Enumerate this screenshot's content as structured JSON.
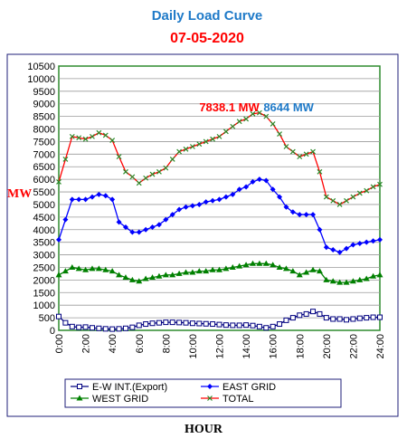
{
  "chart_data": {
    "type": "line",
    "title": "Daily Load Curve",
    "subtitle": "07-05-2020",
    "ylabel": "MW",
    "xlabel": "HOUR",
    "ylim": [
      0,
      10500
    ],
    "yticks": [
      0,
      500,
      1000,
      1500,
      2000,
      2500,
      3000,
      3500,
      4000,
      4500,
      5000,
      5500,
      6000,
      6500,
      7000,
      7500,
      8000,
      8500,
      9000,
      9500,
      10000,
      10500
    ],
    "xlim": [
      0,
      24
    ],
    "xticks": [
      "0:00",
      "2:00",
      "4:00",
      "6:00",
      "8:00",
      "10:00",
      "12:00",
      "14:00",
      "16:00",
      "18:00",
      "20:00",
      "22:00",
      "24:00"
    ],
    "grid": true,
    "legend_position": "bottom",
    "x": [
      0,
      0.5,
      1,
      1.5,
      2,
      2.5,
      3,
      3.5,
      4,
      4.5,
      5,
      5.5,
      6,
      6.5,
      7,
      7.5,
      8,
      8.5,
      9,
      9.5,
      10,
      10.5,
      11,
      11.5,
      12,
      12.5,
      13,
      13.5,
      14,
      14.5,
      15,
      15.5,
      16,
      16.5,
      17,
      17.5,
      18,
      18.5,
      19,
      19.5,
      20,
      20.5,
      21,
      21.5,
      22,
      22.5,
      23,
      23.5,
      24
    ],
    "series": [
      {
        "name": "E-W INT.(Export)",
        "color": "#000080",
        "marker": "square-open",
        "values": [
          550,
          300,
          150,
          120,
          130,
          100,
          80,
          60,
          50,
          60,
          80,
          120,
          200,
          250,
          280,
          300,
          320,
          320,
          310,
          300,
          280,
          270,
          260,
          250,
          230,
          210,
          200,
          200,
          210,
          190,
          150,
          100,
          150,
          250,
          400,
          500,
          600,
          650,
          750,
          650,
          500,
          450,
          450,
          420,
          450,
          480,
          500,
          520,
          520
        ]
      },
      {
        "name": "EAST GRID",
        "color": "#0000ff",
        "marker": "diamond",
        "values": [
          3600,
          4400,
          5200,
          5200,
          5200,
          5300,
          5400,
          5350,
          5200,
          4300,
          4100,
          3900,
          3900,
          4000,
          4100,
          4200,
          4400,
          4600,
          4800,
          4900,
          4950,
          5000,
          5100,
          5150,
          5200,
          5300,
          5400,
          5600,
          5700,
          5900,
          6000,
          5950,
          5600,
          5300,
          4900,
          4700,
          4600,
          4600,
          4600,
          4000,
          3300,
          3200,
          3100,
          3250,
          3400,
          3450,
          3500,
          3550,
          3600
        ]
      },
      {
        "name": "WEST GRID",
        "color": "#008000",
        "marker": "triangle",
        "values": [
          2200,
          2350,
          2500,
          2450,
          2400,
          2450,
          2450,
          2400,
          2350,
          2200,
          2100,
          2000,
          1950,
          2050,
          2100,
          2150,
          2200,
          2200,
          2250,
          2300,
          2300,
          2350,
          2350,
          2400,
          2400,
          2450,
          2500,
          2550,
          2600,
          2650,
          2650,
          2650,
          2600,
          2500,
          2450,
          2350,
          2200,
          2300,
          2400,
          2350,
          2000,
          1950,
          1900,
          1900,
          1950,
          2000,
          2050,
          2150,
          2200
        ]
      },
      {
        "name": "TOTAL",
        "color": "#ff0000",
        "marker": "cross",
        "values": [
          5900,
          6800,
          7700,
          7650,
          7600,
          7700,
          7850,
          7750,
          7550,
          6900,
          6300,
          6100,
          5850,
          6050,
          6200,
          6300,
          6450,
          6800,
          7100,
          7200,
          7300,
          7400,
          7500,
          7600,
          7700,
          7900,
          8100,
          8300,
          8400,
          8600,
          8644,
          8500,
          8200,
          7800,
          7300,
          7100,
          6900,
          7000,
          7100,
          6300,
          5300,
          5150,
          5000,
          5150,
          5300,
          5450,
          5550,
          5700,
          5800
        ]
      }
    ],
    "annotations": [
      {
        "text": "7838.1 MW",
        "color": "#ff0000",
        "x": 10.5,
        "y": 8700
      },
      {
        "text": "8644 MW",
        "color": "#1f7ac8",
        "x": 15.3,
        "y": 8700
      }
    ]
  }
}
